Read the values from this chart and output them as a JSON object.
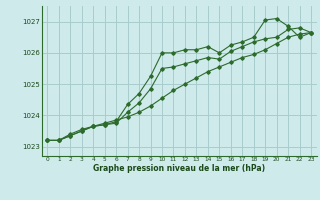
{
  "title": "Graphe pression niveau de la mer (hPa)",
  "background_color": "#ceeaea",
  "grid_color": "#a8cccc",
  "line_color": "#2d6b2d",
  "marker_color": "#2d6b2d",
  "xlim": [
    -0.5,
    23.5
  ],
  "ylim": [
    1022.7,
    1027.5
  ],
  "yticks": [
    1023,
    1024,
    1025,
    1026,
    1027
  ],
  "xticks": [
    0,
    1,
    2,
    3,
    4,
    5,
    6,
    7,
    8,
    9,
    10,
    11,
    12,
    13,
    14,
    15,
    16,
    17,
    18,
    19,
    20,
    21,
    22,
    23
  ],
  "series1_smooth": {
    "x": [
      0,
      1,
      2,
      3,
      4,
      5,
      6,
      7,
      8,
      9,
      10,
      11,
      12,
      13,
      14,
      15,
      16,
      17,
      18,
      19,
      20,
      21,
      22,
      23
    ],
    "y": [
      1023.2,
      1023.2,
      1023.35,
      1023.5,
      1023.65,
      1023.75,
      1023.85,
      1023.95,
      1024.1,
      1024.3,
      1024.55,
      1024.8,
      1025.0,
      1025.2,
      1025.4,
      1025.55,
      1025.7,
      1025.85,
      1025.95,
      1026.1,
      1026.3,
      1026.5,
      1026.6,
      1026.65
    ]
  },
  "series2_jumpy": {
    "x": [
      0,
      1,
      2,
      3,
      4,
      5,
      6,
      7,
      8,
      9,
      10,
      11,
      12,
      13,
      14,
      15,
      16,
      17,
      18,
      19,
      20,
      21,
      22,
      23
    ],
    "y": [
      1023.2,
      1023.2,
      1023.4,
      1023.55,
      1023.65,
      1023.7,
      1023.8,
      1024.35,
      1024.7,
      1025.25,
      1026.0,
      1026.0,
      1026.1,
      1026.1,
      1026.2,
      1026.0,
      1026.25,
      1026.35,
      1026.5,
      1027.05,
      1027.1,
      1026.85,
      1026.5,
      1026.65
    ]
  },
  "series3_mid": {
    "x": [
      0,
      1,
      2,
      3,
      4,
      5,
      6,
      7,
      8,
      9,
      10,
      11,
      12,
      13,
      14,
      15,
      16,
      17,
      18,
      19,
      20,
      21,
      22,
      23
    ],
    "y": [
      1023.2,
      1023.2,
      1023.35,
      1023.5,
      1023.65,
      1023.7,
      1023.75,
      1024.1,
      1024.4,
      1024.85,
      1025.5,
      1025.55,
      1025.65,
      1025.75,
      1025.85,
      1025.8,
      1026.05,
      1026.2,
      1026.35,
      1026.45,
      1026.5,
      1026.75,
      1026.8,
      1026.65
    ]
  }
}
